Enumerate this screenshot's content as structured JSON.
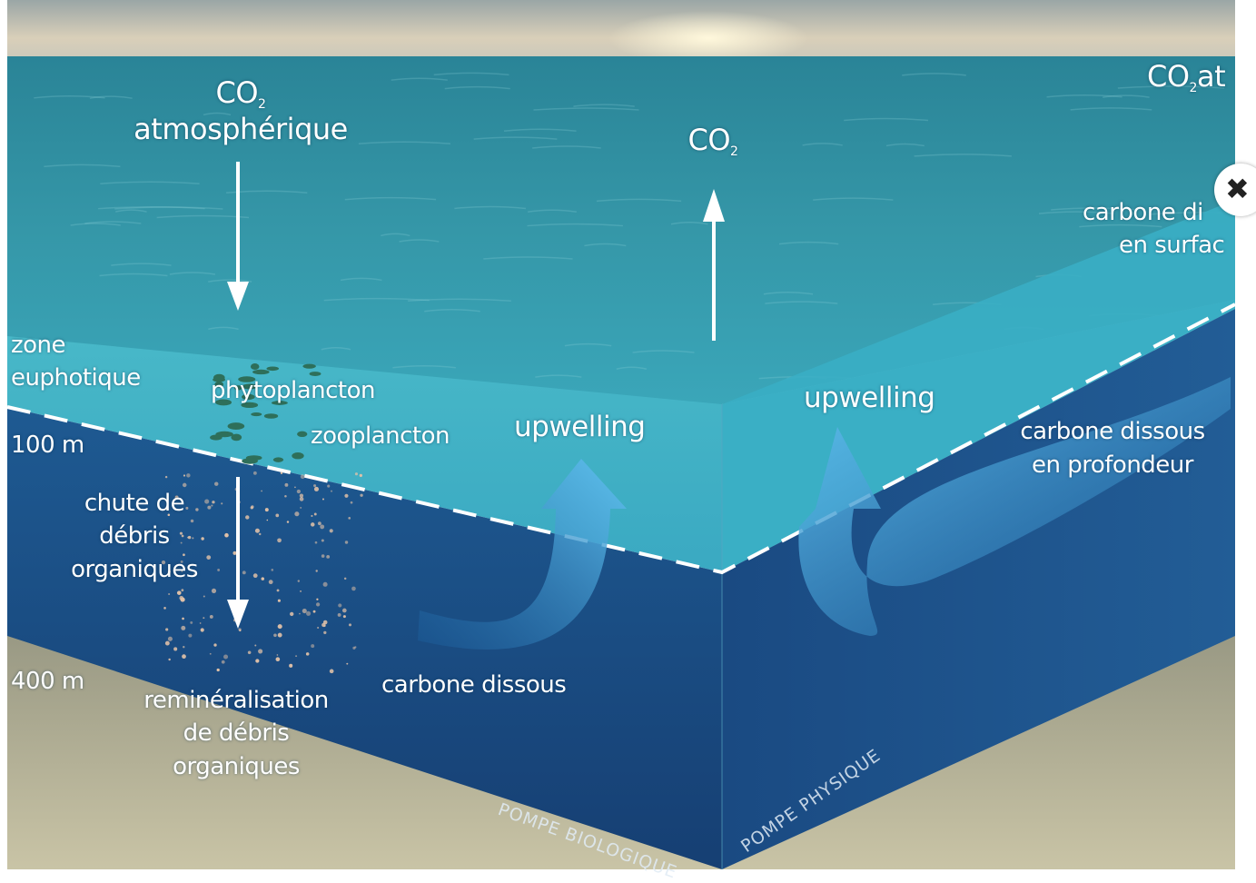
{
  "labels": {
    "co2_atm": "CO",
    "co2_atm_sub": "2",
    "atmospherique": "atmosphérique",
    "co2_up": "CO",
    "co2_up_sub": "2",
    "co2_right": "CO",
    "co2_right_sub": "2",
    "co2_right_tail": "at",
    "carbone_surface_1": "carbone di",
    "carbone_surface_2": "en surfac",
    "zone": "zone",
    "euphotique": "euphotique",
    "phytoplancton": "phytoplancton",
    "zooplancton": "zooplancton",
    "upwelling_left": "upwelling",
    "upwelling_right": "upwelling",
    "carbone_profondeur_1": "carbone dissous",
    "carbone_profondeur_2": "en profondeur",
    "depth_100": "100 m",
    "depth_400": "400 m",
    "chute_1": "chute de",
    "chute_2": "débris",
    "chute_3": "organiques",
    "carbone_dissous": "carbone dissous",
    "remin_1": "reminéralisation",
    "remin_2": "de débris",
    "remin_3": "organiques",
    "pompe_bio": "POMPE BIOLOGIQUE",
    "pompe_phys": "POMPE PHYSIQUE"
  },
  "colors": {
    "sky": "#c9c4b4",
    "sea_surface": "#2f8e9e",
    "euphotic_water": "#3fb0c4",
    "deep_water": "#1d4f86",
    "sea_floor": "#a9a48c",
    "arrow": "#3aa0dc"
  },
  "close_icon": "close-icon"
}
